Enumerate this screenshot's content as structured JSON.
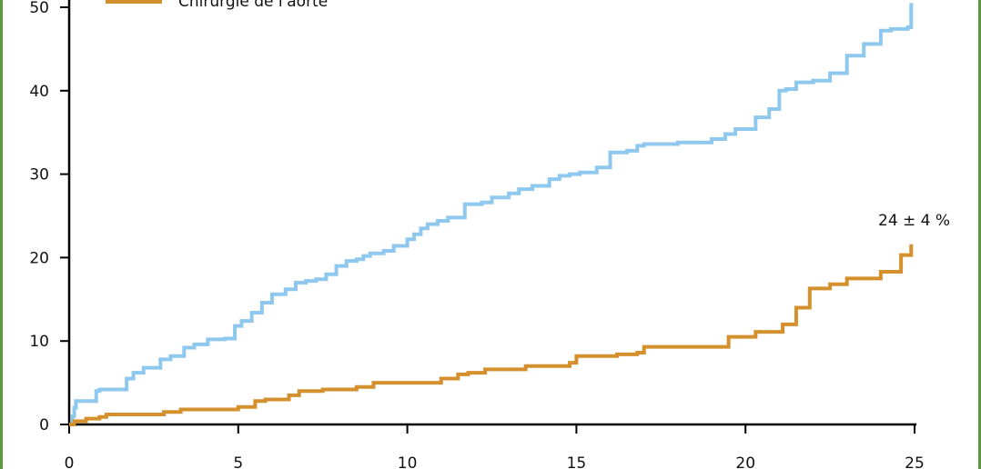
{
  "chart_data": {
    "type": "line",
    "x_ticks": [
      "0",
      "5",
      "10",
      "15",
      "20",
      "25"
    ],
    "y_ticks": [
      "0",
      "10",
      "20",
      "30",
      "40",
      "50"
    ],
    "xlim": [
      0,
      25
    ],
    "ylim": [
      0,
      50
    ],
    "legend": {
      "placement": "top-left",
      "entries": [
        {
          "label": "Chirurgie de l'aorte",
          "color": "#d4902c"
        }
      ]
    },
    "annotations": [
      {
        "text": "24 ± 4 %"
      }
    ],
    "series": [
      {
        "color": "#8ec8ee",
        "x": [
          0,
          0.1,
          0.15,
          0.2,
          0.3,
          0.8,
          0.9,
          1.2,
          1.7,
          1.9,
          2.2,
          2.7,
          3.0,
          3.4,
          3.7,
          4.1,
          4.6,
          4.9,
          5.1,
          5.4,
          5.7,
          6.0,
          6.4,
          6.7,
          7.0,
          7.3,
          7.6,
          7.9,
          8.2,
          8.5,
          8.7,
          8.9,
          9.3,
          9.6,
          10.0,
          10.2,
          10.4,
          10.6,
          10.9,
          11.2,
          11.7,
          12.2,
          12.5,
          13.0,
          13.3,
          13.7,
          14.2,
          14.5,
          14.8,
          15.1,
          15.6,
          16.0,
          16.5,
          16.8,
          17.0,
          18.0,
          19.0,
          19.4,
          19.7,
          20.3,
          20.7,
          21.0,
          21.2,
          21.5,
          22.0,
          22.5,
          23.0,
          23.5,
          24.0,
          24.3,
          24.8,
          24.9
        ],
        "values": [
          0,
          1,
          2,
          2.8,
          2.8,
          4,
          4.2,
          4.2,
          5.5,
          6.2,
          6.8,
          7.8,
          8.2,
          9.2,
          9.6,
          10.2,
          10.3,
          11.8,
          12.4,
          13.4,
          14.6,
          15.6,
          16.2,
          17.0,
          17.2,
          17.4,
          18.0,
          19.0,
          19.6,
          19.8,
          20.2,
          20.5,
          20.8,
          21.4,
          22.2,
          22.8,
          23.5,
          24.0,
          24.4,
          24.8,
          26.4,
          26.6,
          27.2,
          27.7,
          28.2,
          28.6,
          29.4,
          29.8,
          30.0,
          30.2,
          30.8,
          32.6,
          32.8,
          33.4,
          33.6,
          33.8,
          34.2,
          34.8,
          35.4,
          36.8,
          37.8,
          40.0,
          40.2,
          41.0,
          41.2,
          42.1,
          44.2,
          45.6,
          47.2,
          47.4,
          47.6,
          50.5
        ]
      },
      {
        "name": "Chirurgie de l'aorte",
        "color": "#d4902c",
        "x": [
          0,
          0.15,
          0.5,
          0.9,
          1.1,
          2.8,
          3.3,
          5.0,
          5.5,
          5.8,
          6.5,
          6.8,
          7.5,
          8.5,
          9.0,
          11.0,
          11.5,
          11.8,
          12.3,
          13.5,
          14.8,
          15.0,
          16.2,
          16.8,
          17.0,
          19.5,
          20.3,
          21.1,
          21.5,
          21.9,
          22.5,
          23.0,
          24.0,
          24.6,
          24.9
        ],
        "values": [
          0,
          0.4,
          0.7,
          0.9,
          1.2,
          1.5,
          1.8,
          2.1,
          2.8,
          3.0,
          3.5,
          4.0,
          4.2,
          4.5,
          5.0,
          5.5,
          6.0,
          6.2,
          6.6,
          7.0,
          7.4,
          8.2,
          8.4,
          8.6,
          9.3,
          10.5,
          11.1,
          12.0,
          14.0,
          16.3,
          16.8,
          17.5,
          18.3,
          20.3,
          21.6
        ]
      }
    ]
  }
}
